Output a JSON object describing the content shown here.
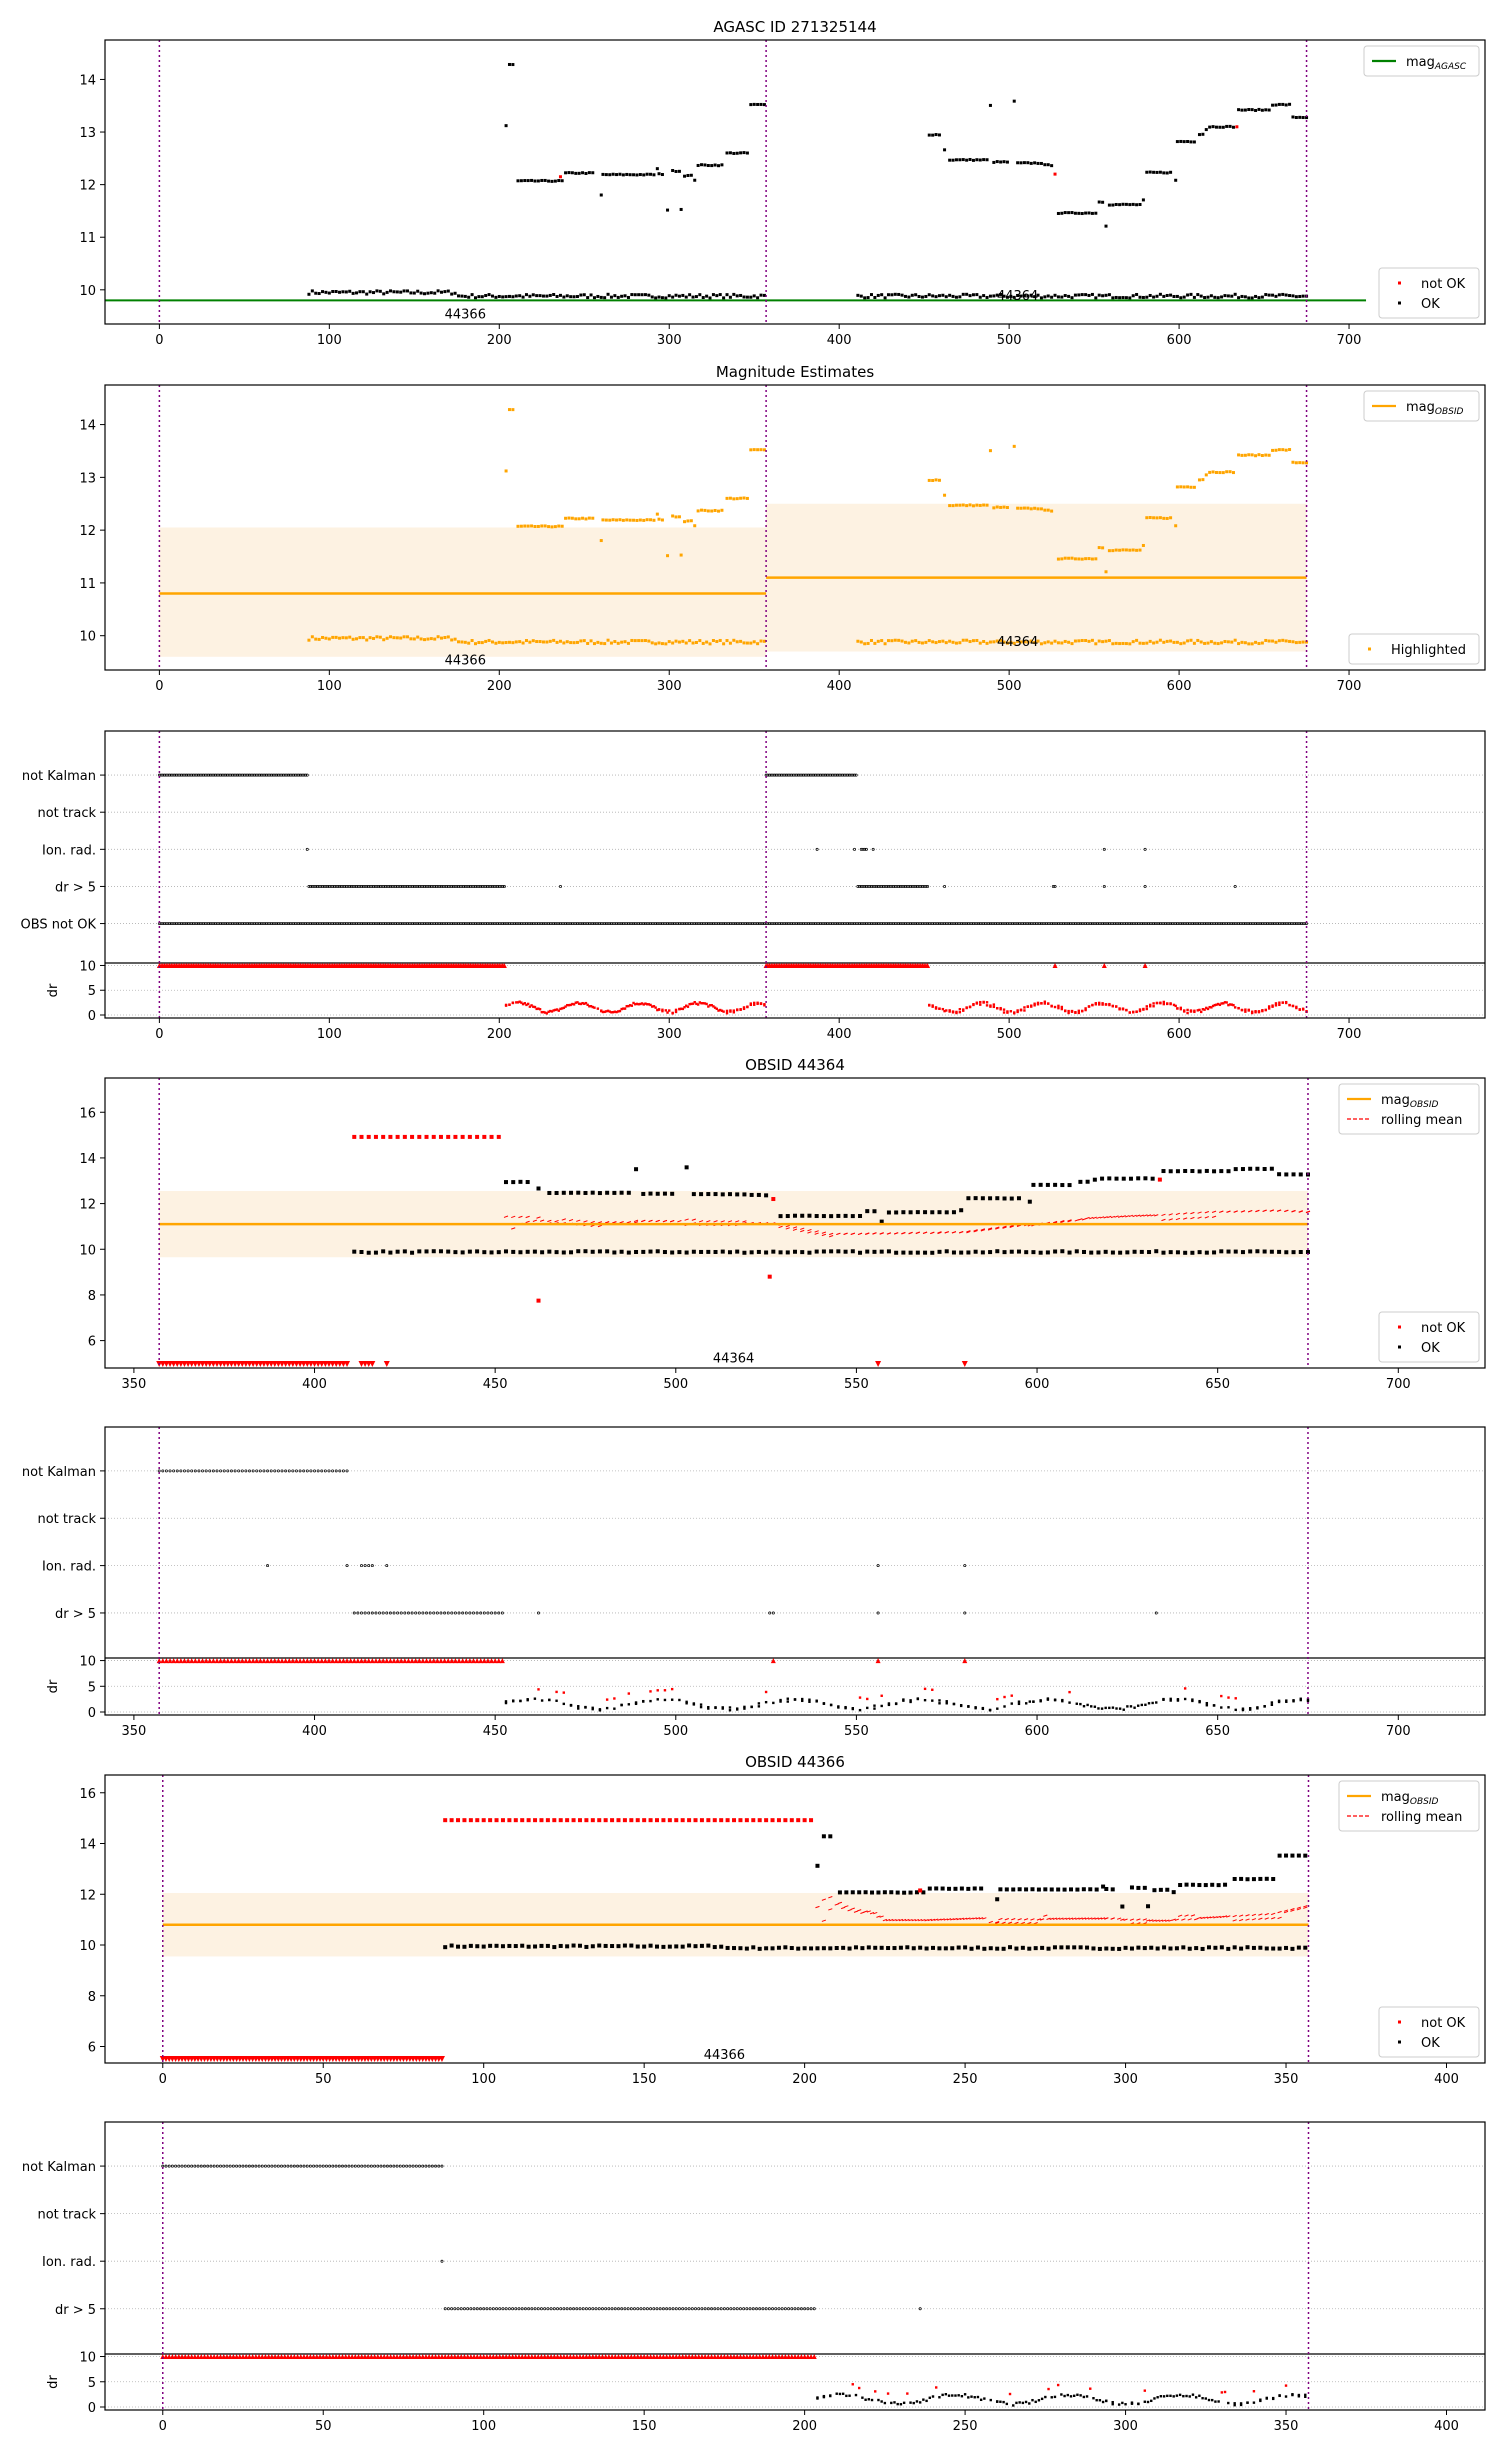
{
  "figure": {
    "description": "AGASC magnitude diagnostic plots"
  },
  "colors": {
    "ok": "#000000",
    "not_ok": "#ff0000",
    "highlighted": "#ffa500",
    "mag_agasc": "#008000",
    "mag_obsid": "#ffa500",
    "band": "#fdf2e2",
    "obsid_boundary": "#800080",
    "rolling_mean": "#ff0000",
    "grid": "#b0b0b0"
  },
  "chart_data": [
    {
      "id": "agasc",
      "type": "scatter",
      "title": "AGASC ID 271325144",
      "xlim": [
        -32,
        780
      ],
      "ylim": [
        9.35,
        14.75
      ],
      "xticks": [
        0,
        100,
        200,
        300,
        400,
        500,
        600,
        700
      ],
      "yticks": [
        10,
        11,
        12,
        13,
        14
      ],
      "xlabel": "",
      "ylabel": "",
      "boundaries": [
        0,
        357,
        675
      ],
      "hline": {
        "label": "mag_AGASC",
        "value": 9.8,
        "x": [
          -32,
          710
        ]
      },
      "annotations": [
        {
          "text": "44366",
          "x": 180,
          "y": 9.55
        },
        {
          "text": "44364",
          "x": 505,
          "y": 9.9
        }
      ],
      "legends": [
        {
          "position": "top-right",
          "entries": [
            {
              "label": "mag",
              "sub": "AGASC",
              "kind": "line",
              "color": "mag_agasc"
            }
          ]
        },
        {
          "position": "bottom-right",
          "entries": [
            {
              "label": "not OK",
              "kind": "dot",
              "color": "not_ok"
            },
            {
              "label": "OK",
              "kind": "dot",
              "color": "ok"
            }
          ]
        }
      ],
      "point_style": "okmask"
    },
    {
      "id": "estimates",
      "type": "scatter",
      "title": "Magnitude Estimates",
      "xlim": [
        -32,
        780
      ],
      "ylim": [
        9.35,
        14.75
      ],
      "xticks": [
        0,
        100,
        200,
        300,
        400,
        500,
        600,
        700
      ],
      "yticks": [
        10,
        11,
        12,
        13,
        14
      ],
      "boundaries": [
        0,
        357,
        675
      ],
      "obsid_means": [
        {
          "obsid": "44366",
          "x": [
            0,
            357
          ],
          "mean": 10.8,
          "band": [
            9.6,
            12.05
          ]
        },
        {
          "obsid": "44364",
          "x": [
            357,
            675
          ],
          "mean": 11.1,
          "band": [
            9.7,
            12.5
          ]
        }
      ],
      "annotations": [
        {
          "text": "44366",
          "x": 180,
          "y": 9.55
        },
        {
          "text": "44364",
          "x": 505,
          "y": 9.9
        }
      ],
      "legends": [
        {
          "position": "top-right",
          "entries": [
            {
              "label": "mag",
              "sub": "OBSID",
              "kind": "line",
              "color": "mag_obsid"
            }
          ]
        },
        {
          "position": "bottom-right",
          "entries": [
            {
              "label": "Highlighted",
              "kind": "dot",
              "color": "highlighted"
            }
          ]
        }
      ],
      "point_style": "highlighted"
    },
    {
      "id": "flags-all",
      "type": "scatter",
      "xlim": [
        -32,
        780
      ],
      "flag_rows": [
        "not Kalman",
        "not track",
        "Ion. rad.",
        "dr > 5",
        "OBS not OK"
      ],
      "dr_ylabel": "dr",
      "dr_yticks": [
        0,
        5,
        10
      ],
      "xticks": [
        0,
        100,
        200,
        300,
        400,
        500,
        600,
        700
      ],
      "boundaries": [
        0,
        357,
        675
      ],
      "flags": {
        "not Kalman": [
          [
            0,
            87
          ],
          [
            357,
            410
          ]
        ],
        "not track": [],
        "Ion. rad.": [
          [
            87,
            87
          ],
          [
            387,
            387
          ],
          [
            409,
            409
          ],
          [
            413,
            416
          ],
          [
            420,
            420
          ],
          [
            556,
            556
          ],
          [
            580,
            580
          ]
        ],
        "dr > 5": [
          [
            88,
            203
          ],
          [
            236,
            236
          ],
          [
            411,
            452
          ],
          [
            462,
            462
          ],
          [
            526,
            527
          ],
          [
            556,
            556
          ],
          [
            580,
            580
          ],
          [
            633,
            633
          ]
        ],
        "OBS not OK": [
          [
            0,
            675
          ]
        ]
      },
      "dr_capped": [
        [
          0,
          203
        ],
        [
          357,
          452
        ],
        [
          527,
          527
        ],
        [
          556,
          556
        ],
        [
          580,
          580
        ]
      ],
      "dr_color_mode": "all_red"
    },
    {
      "id": "obsid-44364",
      "type": "scatter",
      "title": "OBSID 44364",
      "xlim": [
        342,
        724
      ],
      "ylim": [
        4.8,
        17.5
      ],
      "xticks": [
        350,
        400,
        450,
        500,
        550,
        600,
        650,
        700
      ],
      "yticks": [
        6,
        8,
        10,
        12,
        14,
        16
      ],
      "boundaries": [
        357,
        675
      ],
      "obsid_means": [
        {
          "obsid": "44364",
          "x": [
            357,
            675
          ],
          "mean": 11.1,
          "band": [
            9.65,
            12.55
          ]
        }
      ],
      "rolling_mean_range": [
        452,
        675
      ],
      "annotations": [
        {
          "text": "44364",
          "x": 516,
          "y": 5.25
        }
      ],
      "legends": [
        {
          "position": "top-right",
          "entries": [
            {
              "label": "mag",
              "sub": "OBSID",
              "kind": "line",
              "color": "mag_obsid"
            },
            {
              "label": "rolling mean",
              "kind": "dash",
              "color": "rolling_mean"
            }
          ]
        },
        {
          "position": "bottom-right",
          "entries": [
            {
              "label": "not OK",
              "kind": "dot",
              "color": "not_ok"
            },
            {
              "label": "OK",
              "kind": "dot",
              "color": "ok"
            }
          ]
        }
      ],
      "flags": {
        "not Kalman": [
          [
            357,
            409
          ]
        ],
        "not track": [],
        "Ion. rad.": [
          [
            387,
            387
          ],
          [
            409,
            409
          ],
          [
            413,
            416
          ],
          [
            420,
            420
          ],
          [
            556,
            556
          ],
          [
            580,
            580
          ]
        ],
        "dr > 5": [
          [
            411,
            452
          ],
          [
            462,
            462
          ],
          [
            526,
            527
          ],
          [
            556,
            556
          ],
          [
            580,
            580
          ],
          [
            633,
            633
          ]
        ]
      },
      "bad_low": [
        [
          357,
          409
        ],
        [
          413,
          416
        ],
        [
          420,
          420
        ],
        [
          556,
          556
        ],
        [
          580,
          580
        ]
      ],
      "bad_high": [
        [
          411,
          452
        ]
      ],
      "bad_singles": [
        {
          "x": 462,
          "y": 7.75
        },
        {
          "x": 526,
          "y": 8.8
        },
        {
          "x": 634,
          "y": 13.05
        },
        {
          "x": 527,
          "y": 12.2
        }
      ]
    },
    {
      "id": "flags-44364",
      "type": "scatter",
      "xlim": [
        342,
        724
      ],
      "flag_rows": [
        "not Kalman",
        "not track",
        "Ion. rad.",
        "dr > 5"
      ],
      "dr_ylabel": "dr",
      "dr_yticks": [
        0,
        5,
        10
      ],
      "xticks": [
        350,
        400,
        450,
        500,
        550,
        600,
        650,
        700
      ],
      "boundaries": [
        357,
        675
      ],
      "source": "obsid-44364",
      "dr_capped": [
        [
          357,
          452
        ],
        [
          527,
          527
        ],
        [
          556,
          556
        ],
        [
          580,
          580
        ]
      ],
      "dr_color_mode": "mixed"
    },
    {
      "id": "obsid-44366",
      "type": "scatter",
      "title": "OBSID 44366",
      "xlim": [
        -18,
        412
      ],
      "ylim": [
        5.35,
        16.7
      ],
      "xticks": [
        0,
        50,
        100,
        150,
        200,
        250,
        300,
        350,
        400
      ],
      "yticks": [
        6,
        8,
        10,
        12,
        14,
        16
      ],
      "boundaries": [
        0,
        357
      ],
      "obsid_means": [
        {
          "obsid": "44366",
          "x": [
            0,
            357
          ],
          "mean": 10.8,
          "band": [
            9.55,
            12.05
          ]
        }
      ],
      "rolling_mean_range": [
        203,
        357
      ],
      "annotations": [
        {
          "text": "44366",
          "x": 175,
          "y": 5.7
        }
      ],
      "legends": [
        {
          "position": "top-right",
          "entries": [
            {
              "label": "mag",
              "sub": "OBSID",
              "kind": "line",
              "color": "mag_obsid"
            },
            {
              "label": "rolling mean",
              "kind": "dash",
              "color": "rolling_mean"
            }
          ]
        },
        {
          "position": "bottom-right",
          "entries": [
            {
              "label": "not OK",
              "kind": "dot",
              "color": "not_ok"
            },
            {
              "label": "OK",
              "kind": "dot",
              "color": "ok"
            }
          ]
        }
      ],
      "flags": {
        "not Kalman": [
          [
            0,
            87
          ]
        ],
        "not track": [],
        "Ion. rad.": [
          [
            87,
            87
          ]
        ],
        "dr > 5": [
          [
            88,
            203
          ],
          [
            236,
            236
          ]
        ]
      },
      "bad_low": [
        [
          0,
          87
        ]
      ],
      "bad_high": [
        [
          88,
          203
        ]
      ],
      "bad_singles": [
        {
          "x": 236,
          "y": 12.15
        }
      ]
    },
    {
      "id": "flags-44366",
      "type": "scatter",
      "xlim": [
        -18,
        412
      ],
      "flag_rows": [
        "not Kalman",
        "not track",
        "Ion. rad.",
        "dr > 5"
      ],
      "dr_ylabel": "dr",
      "dr_yticks": [
        0,
        5,
        10
      ],
      "xticks": [
        0,
        50,
        100,
        150,
        200,
        250,
        300,
        350,
        400
      ],
      "boundaries": [
        0,
        357
      ],
      "source": "obsid-44366",
      "dr_capped": [
        [
          0,
          203
        ]
      ],
      "dr_color_mode": "mixed"
    }
  ],
  "magnitude_series": {
    "description": "Observed magnitude per sample index (faint track ~9.9 and bright track stepping); estimated from plot",
    "faint_track": {
      "x_ranges": [
        [
          88,
          357
        ],
        [
          411,
          675
        ]
      ],
      "y_approx": 9.88
    },
    "bright_track_steps": [
      {
        "x": [
          204,
          204
        ],
        "y": 13.12
      },
      {
        "x": [
          206,
          209
        ],
        "y": 14.28
      },
      {
        "x": [
          211,
          235
        ],
        "y": 12.07
      },
      {
        "x": [
          237,
          237
        ],
        "y": 12.07
      },
      {
        "x": [
          239,
          255
        ],
        "y": 12.22
      },
      {
        "x": [
          260,
          260
        ],
        "y": 11.8
      },
      {
        "x": [
          261,
          291
        ],
        "y": 12.19
      },
      {
        "x": [
          293,
          293
        ],
        "y": 12.3
      },
      {
        "x": [
          294,
          296
        ],
        "y": 12.2
      },
      {
        "x": [
          299,
          299
        ],
        "y": 11.52
      },
      {
        "x": [
          302,
          306
        ],
        "y": 12.26
      },
      {
        "x": [
          307,
          307
        ],
        "y": 11.53
      },
      {
        "x": [
          309,
          313
        ],
        "y": 12.17
      },
      {
        "x": [
          315,
          315
        ],
        "y": 12.09
      },
      {
        "x": [
          317,
          332
        ],
        "y": 12.37
      },
      {
        "x": [
          334,
          346
        ],
        "y": 12.6
      },
      {
        "x": [
          348,
          357
        ],
        "y": 13.52
      },
      {
        "x": [
          453,
          460
        ],
        "y": 12.95
      },
      {
        "x": [
          462,
          462
        ],
        "y": 12.66
      },
      {
        "x": [
          465,
          487
        ],
        "y": 12.47
      },
      {
        "x": [
          489,
          489
        ],
        "y": 13.5
      },
      {
        "x": [
          491,
          500
        ],
        "y": 12.43
      },
      {
        "x": [
          503,
          503
        ],
        "y": 13.58
      },
      {
        "x": [
          505,
          520
        ],
        "y": 12.41
      },
      {
        "x": [
          521,
          525
        ],
        "y": 12.37
      },
      {
        "x": [
          529,
          552
        ],
        "y": 11.46
      },
      {
        "x": [
          553,
          555
        ],
        "y": 11.67
      },
      {
        "x": [
          557,
          557
        ],
        "y": 11.22
      },
      {
        "x": [
          559,
          577
        ],
        "y": 11.62
      },
      {
        "x": [
          579,
          579
        ],
        "y": 11.7
      },
      {
        "x": [
          581,
          596
        ],
        "y": 12.23
      },
      {
        "x": [
          598,
          598
        ],
        "y": 12.08
      },
      {
        "x": [
          599,
          610
        ],
        "y": 12.82
      },
      {
        "x": [
          612,
          614
        ],
        "y": 12.96
      },
      {
        "x": [
          616,
          616
        ],
        "y": 13.05
      },
      {
        "x": [
          618,
          633
        ],
        "y": 13.1
      },
      {
        "x": [
          635,
          653
        ],
        "y": 13.42
      },
      {
        "x": [
          655,
          666
        ],
        "y": 13.52
      },
      {
        "x": [
          667,
          675
        ],
        "y": 13.28
      }
    ]
  }
}
